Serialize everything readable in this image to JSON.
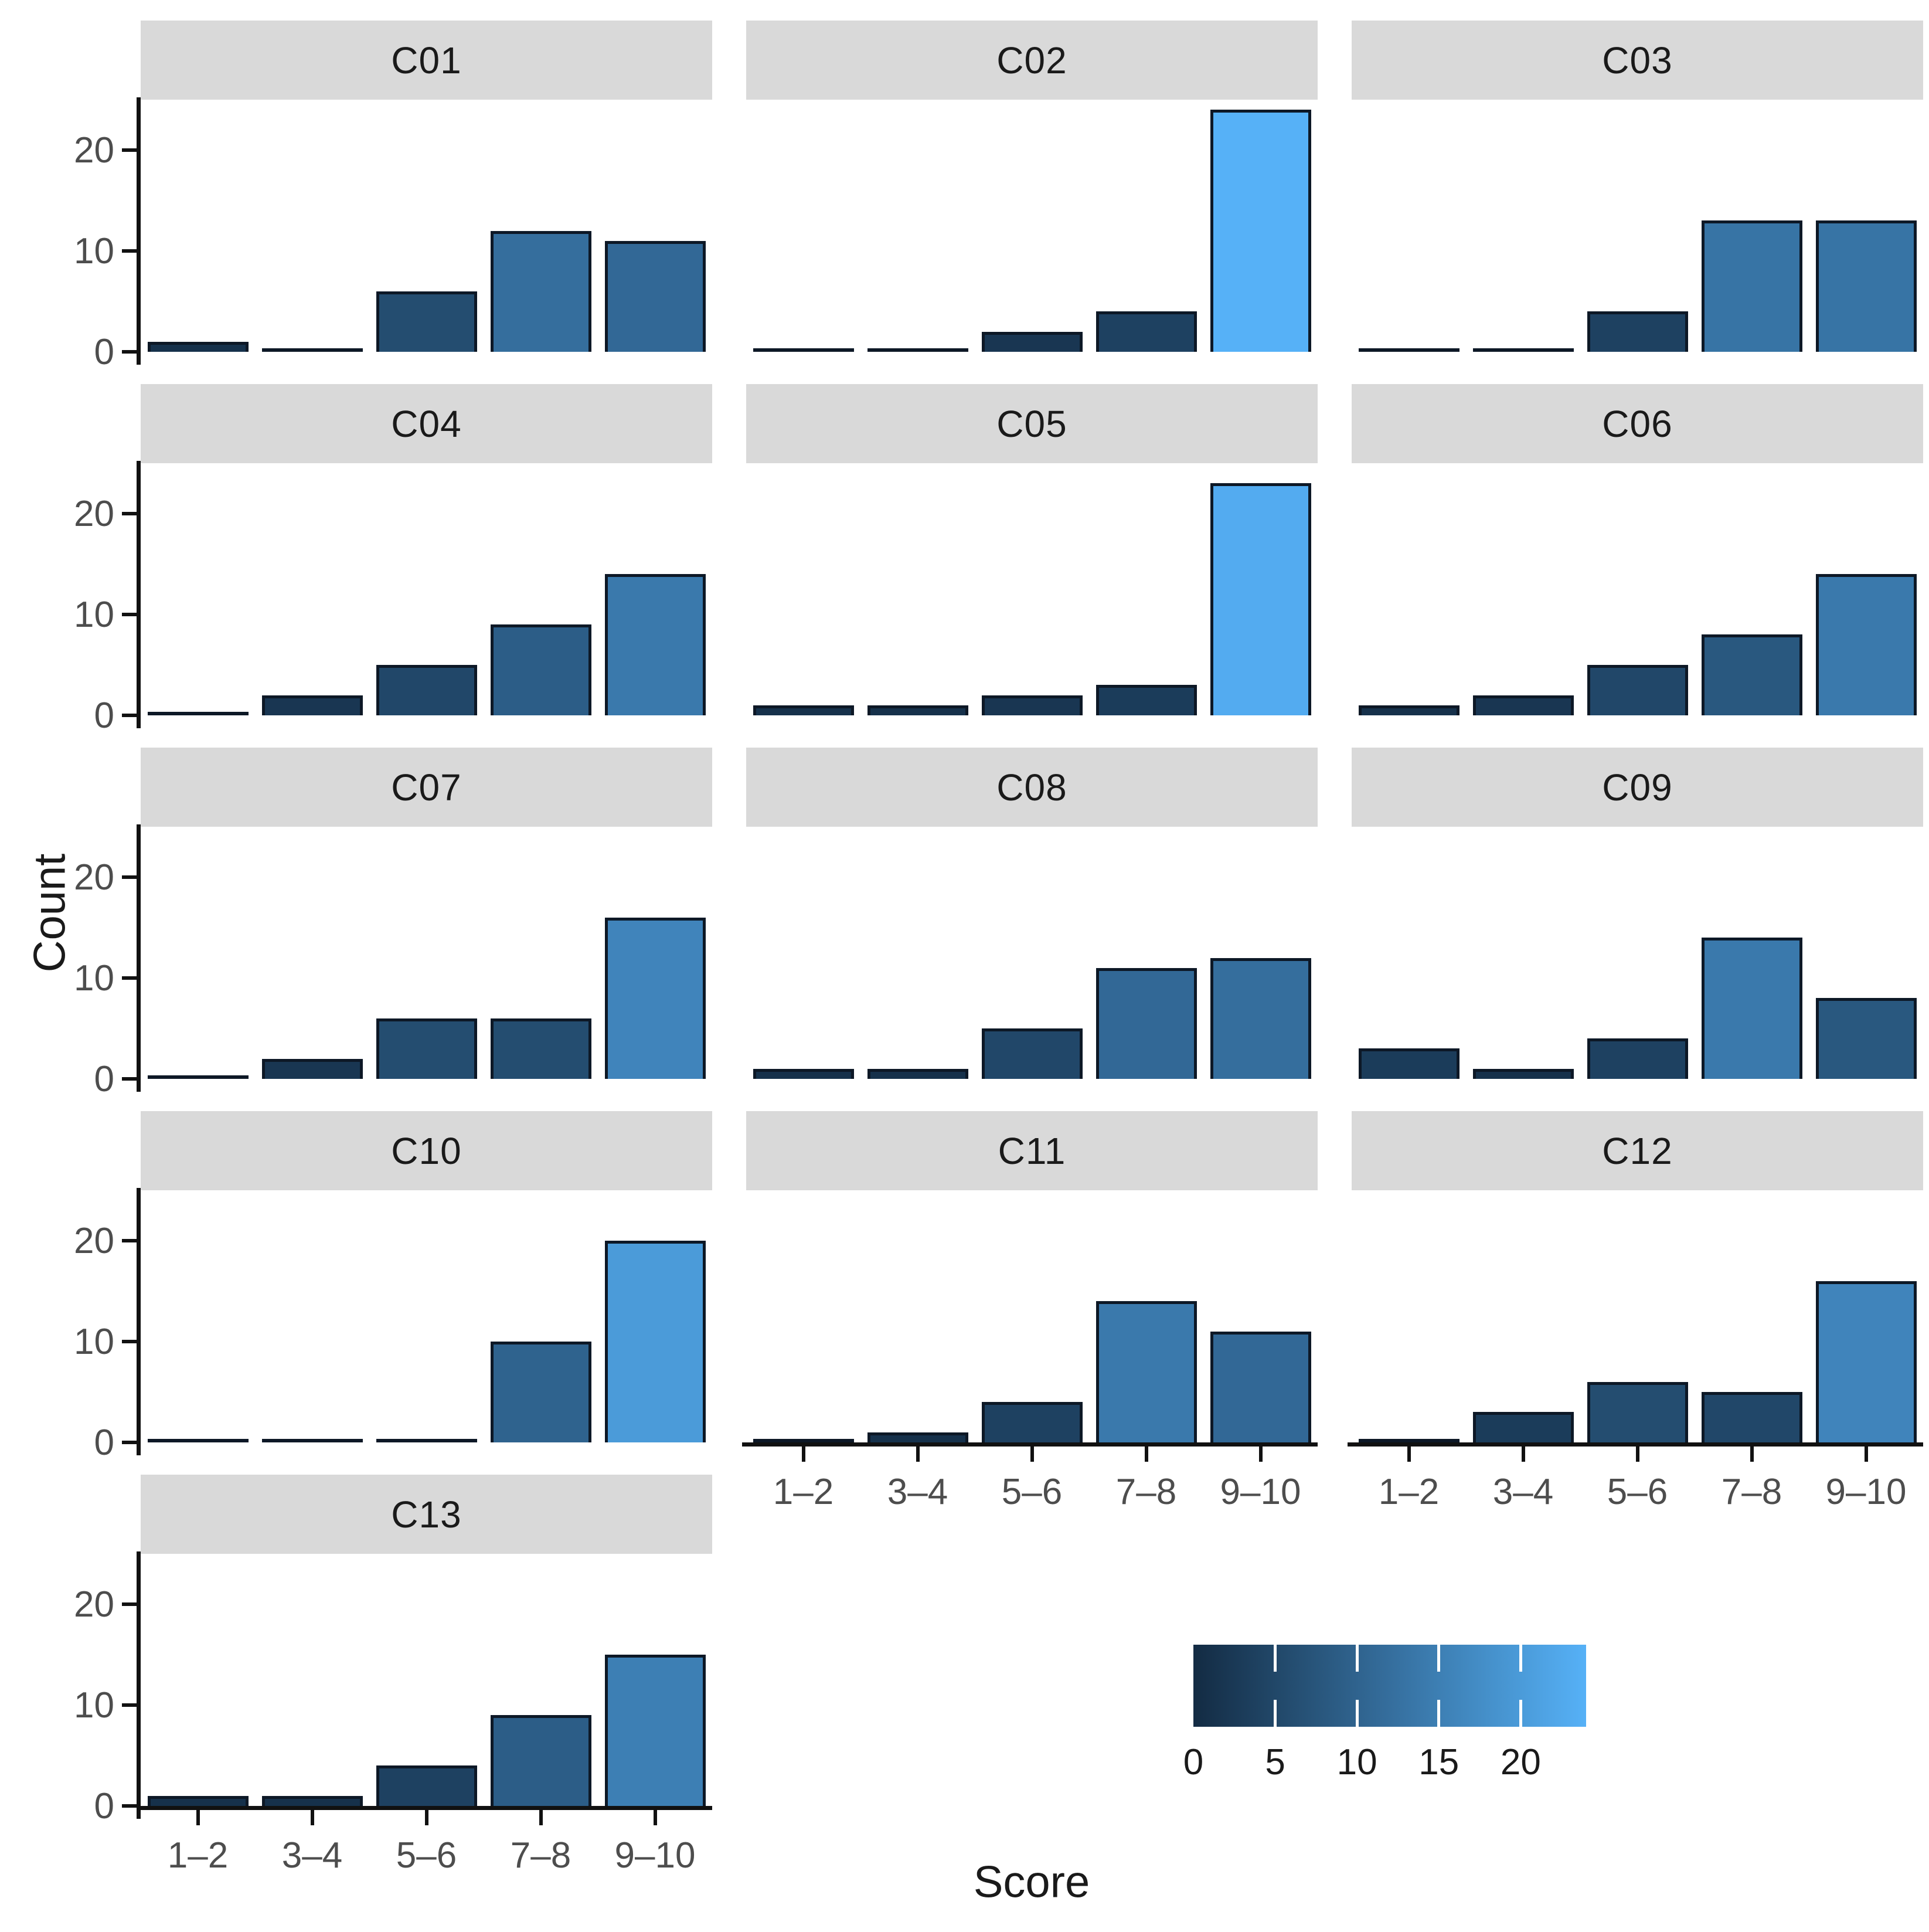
{
  "chart_data": {
    "type": "bar",
    "title": "",
    "subtitle": "",
    "categories": [
      "1–2",
      "3–4",
      "5–6",
      "7–8",
      "9–10"
    ],
    "facets": [
      {
        "name": "C01",
        "values": [
          1,
          0,
          6,
          12,
          11
        ]
      },
      {
        "name": "C02",
        "values": [
          0,
          0,
          2,
          4,
          24
        ]
      },
      {
        "name": "C03",
        "values": [
          0,
          0,
          4,
          13,
          13
        ]
      },
      {
        "name": "C04",
        "values": [
          0,
          2,
          5,
          9,
          14
        ]
      },
      {
        "name": "C05",
        "values": [
          1,
          1,
          2,
          3,
          23
        ]
      },
      {
        "name": "C06",
        "values": [
          1,
          2,
          5,
          8,
          14
        ]
      },
      {
        "name": "C07",
        "values": [
          0,
          2,
          6,
          6,
          16
        ]
      },
      {
        "name": "C08",
        "values": [
          1,
          1,
          5,
          11,
          12
        ]
      },
      {
        "name": "C09",
        "values": [
          3,
          1,
          4,
          14,
          8
        ]
      },
      {
        "name": "C10",
        "values": [
          0,
          0,
          0,
          10,
          20
        ]
      },
      {
        "name": "C11",
        "values": [
          0,
          1,
          4,
          14,
          11
        ]
      },
      {
        "name": "C12",
        "values": [
          0,
          3,
          6,
          5,
          16
        ]
      },
      {
        "name": "C13",
        "values": [
          1,
          1,
          4,
          9,
          15
        ]
      }
    ],
    "xlabel": "Score",
    "ylabel": "Count",
    "ylim": [
      0,
      25
    ],
    "y_ticks": [
      0,
      10,
      20
    ],
    "grid": false,
    "facet_columns": 3,
    "x_axis_panels": [
      "C11",
      "C12",
      "C13"
    ],
    "legend": {
      "type": "colorbar",
      "orientation": "horizontal",
      "position": "bottom-right",
      "domain": [
        0,
        24
      ],
      "ticks": [
        0,
        5,
        10,
        15,
        20
      ],
      "low_color": "#132B43",
      "high_color": "#56B1F7"
    }
  },
  "figure": {
    "colors": {
      "background": "#FFFFFF",
      "strip_bg": "#D9D9D9",
      "strip_text": "#1A1A1A",
      "bar_stroke": "#0D1826",
      "axis_line": "#111111",
      "tick_text": "#4D4D4D",
      "label_text": "#1A1A1A"
    }
  }
}
